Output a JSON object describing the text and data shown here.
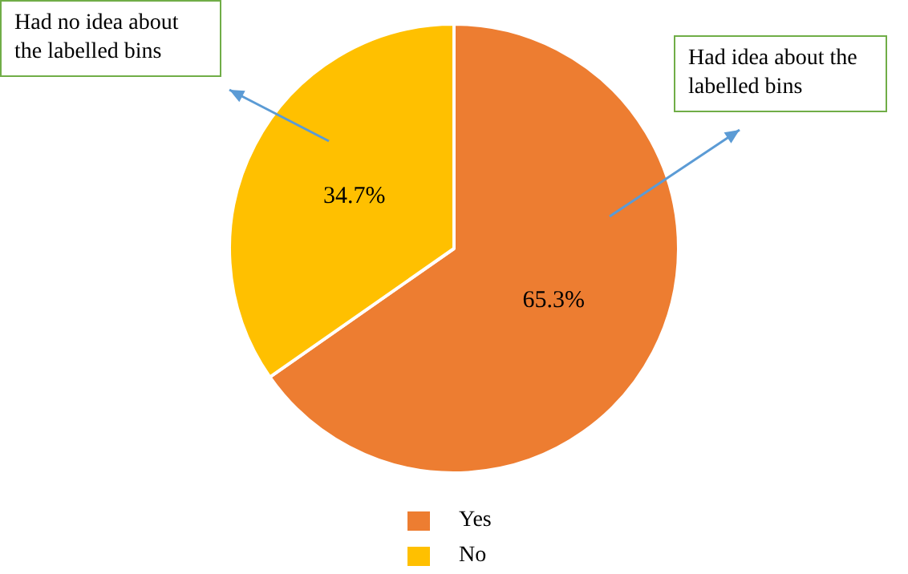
{
  "chart_data": {
    "type": "pie",
    "categories": [
      "Yes",
      "No"
    ],
    "values": [
      65.3,
      34.7
    ],
    "colors": [
      "#ed7d31",
      "#ffc000"
    ],
    "value_labels": [
      "65.3%",
      "34.7%"
    ],
    "legend": "bottom",
    "annotations": [
      "Had no idea about the labelled bins",
      "Had idea about the labelled bins"
    ]
  }
}
